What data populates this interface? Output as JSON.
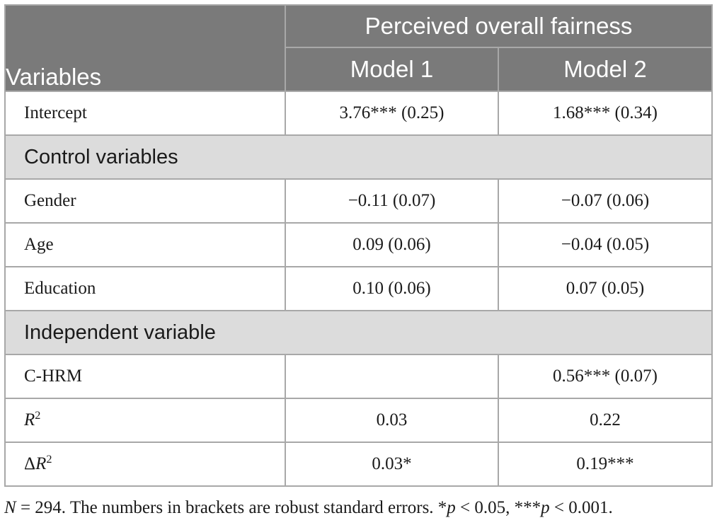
{
  "header": {
    "variables_label": "Variables",
    "group_label": "Perceived overall fairness",
    "model1_label": "Model 1",
    "model2_label": "Model 2"
  },
  "rows": {
    "intercept": {
      "label": "Intercept",
      "m1": "3.76*** (0.25)",
      "m2": "1.68*** (0.34)"
    },
    "section_controls": "Control variables",
    "gender": {
      "label": "Gender",
      "m1": "−0.11 (0.07)",
      "m2": "−0.07 (0.06)"
    },
    "age": {
      "label": "Age",
      "m1": "0.09 (0.06)",
      "m2": "−0.04 (0.05)"
    },
    "education": {
      "label": "Education",
      "m1": "0.10 (0.06)",
      "m2": "0.07 (0.05)"
    },
    "section_independent": "Independent variable",
    "chrm": {
      "label": "C-HRM",
      "m1": "",
      "m2": "0.56*** (0.07)"
    },
    "r2": {
      "label_base": "R",
      "label_sup": "2",
      "m1": "0.03",
      "m2": "0.22"
    },
    "delta_r2": {
      "label_prefix": "Δ",
      "label_base": "R",
      "label_sup": "2",
      "m1": "0.03*",
      "m2": "0.19***"
    }
  },
  "note": {
    "n_symbol": "N",
    "n_text": " = 294. The numbers in brackets are robust standard errors. *",
    "p1": "p",
    "t1": " < 0.05, ***",
    "p2": "p",
    "t2": " < 0.001."
  }
}
